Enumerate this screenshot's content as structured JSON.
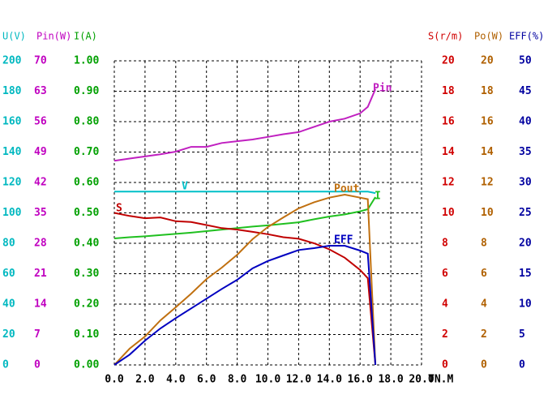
{
  "chart_data": {
    "type": "line",
    "x_label": "TN.M",
    "xlim": [
      0,
      20
    ],
    "xticks": [
      {
        "value": 0,
        "label": "0.0"
      },
      {
        "value": 2,
        "label": "2.0"
      },
      {
        "value": 4,
        "label": "4.0"
      },
      {
        "value": 6,
        "label": "6.0"
      },
      {
        "value": 8,
        "label": "8.0"
      },
      {
        "value": 10,
        "label": "10.0"
      },
      {
        "value": 12,
        "label": "12.0"
      },
      {
        "value": 14,
        "label": "14.0"
      },
      {
        "value": 16,
        "label": "16.0"
      },
      {
        "value": 18,
        "label": "18.0"
      },
      {
        "value": 20,
        "label": "20.0"
      }
    ],
    "grid": true,
    "x": [
      0,
      1,
      2,
      3,
      4,
      5,
      6,
      7,
      8,
      9,
      10,
      11,
      12,
      13,
      14,
      15,
      16,
      16.5,
      17
    ],
    "axes": [
      {
        "label": "U(V)",
        "color": "#00b8c0",
        "ylim": [
          0,
          200
        ],
        "yticks": [
          0,
          20,
          40,
          60,
          80,
          100,
          120,
          140,
          160,
          180,
          200
        ],
        "series": {
          "name": "V",
          "color": "#00c0c8",
          "values": [
            114,
            114,
            114,
            114,
            114,
            114,
            114,
            114,
            114,
            114,
            114,
            114,
            114,
            114,
            114,
            114,
            114,
            114,
            113
          ]
        }
      },
      {
        "label": "Pin(W)",
        "color": "#c000c0",
        "ylim": [
          0,
          70
        ],
        "yticks": [
          0,
          7,
          14,
          21,
          28,
          35,
          42,
          49,
          56,
          63,
          70
        ],
        "series": {
          "name": "Pin",
          "color": "#c020c0",
          "values": [
            47.0,
            47.5,
            48.0,
            48.5,
            49.1,
            50.2,
            50.2,
            51.1,
            51.5,
            51.9,
            52.5,
            53.1,
            53.6,
            54.8,
            56.0,
            56.7,
            57.9,
            59.4,
            63.5
          ]
        }
      },
      {
        "label": "I(A)",
        "color": "#00a000",
        "ylim": [
          0,
          1
        ],
        "yticks": [
          {
            "value": 0,
            "label": "0.00"
          },
          {
            "value": 0.1,
            "label": "0.10"
          },
          {
            "value": 0.2,
            "label": "0.20"
          },
          {
            "value": 0.3,
            "label": "0.30"
          },
          {
            "value": 0.4,
            "label": "0.40"
          },
          {
            "value": 0.5,
            "label": "0.50"
          },
          {
            "value": 0.6,
            "label": "0.60"
          },
          {
            "value": 0.7,
            "label": "0.70"
          },
          {
            "value": 0.8,
            "label": "0.80"
          },
          {
            "value": 0.9,
            "label": "0.90"
          },
          {
            "value": 1,
            "label": "1.00"
          }
        ],
        "series": {
          "name": "I",
          "color": "#20c020",
          "values": [
            0.416,
            0.42,
            0.423,
            0.427,
            0.431,
            0.435,
            0.44,
            0.445,
            0.45,
            0.455,
            0.459,
            0.464,
            0.469,
            0.479,
            0.488,
            0.495,
            0.505,
            0.512,
            0.552
          ]
        }
      },
      {
        "label": "S(r/m)",
        "color": "#d00000",
        "ylim": [
          0,
          20
        ],
        "yticks": [
          0,
          2,
          4,
          6,
          8,
          10,
          12,
          14,
          16,
          18,
          20
        ],
        "series": {
          "name": "S",
          "color": "#c00000",
          "values": [
            10.0,
            9.8,
            9.65,
            9.7,
            9.45,
            9.4,
            9.2,
            9.0,
            8.9,
            8.75,
            8.6,
            8.4,
            8.3,
            8.0,
            7.6,
            7.05,
            6.25,
            5.7,
            0
          ]
        }
      },
      {
        "label": "Po(W)",
        "color": "#b06000",
        "ylim": [
          0,
          20
        ],
        "yticks": [
          0,
          2,
          4,
          6,
          8,
          10,
          12,
          14,
          16,
          18,
          20
        ],
        "series": {
          "name": "Pout",
          "color": "#c07010",
          "values": [
            0,
            1.07,
            1.87,
            2.93,
            3.79,
            4.69,
            5.65,
            6.4,
            7.25,
            8.27,
            9.07,
            9.7,
            10.3,
            10.7,
            11.0,
            11.2,
            11.0,
            10.9,
            0
          ]
        }
      },
      {
        "label": "EFF(%)",
        "color": "#0000a0",
        "ylim": [
          0,
          50
        ],
        "yticks": [
          0,
          5,
          10,
          15,
          20,
          25,
          30,
          35,
          40,
          45,
          50
        ],
        "series": {
          "name": "EFF",
          "color": "#0000c0",
          "values": [
            0,
            1.7,
            4.0,
            6.0,
            7.7,
            9.3,
            10.9,
            12.5,
            14.0,
            15.9,
            17.1,
            18.0,
            18.9,
            19.2,
            19.6,
            19.6,
            18.8,
            18.3,
            0
          ]
        }
      }
    ]
  }
}
